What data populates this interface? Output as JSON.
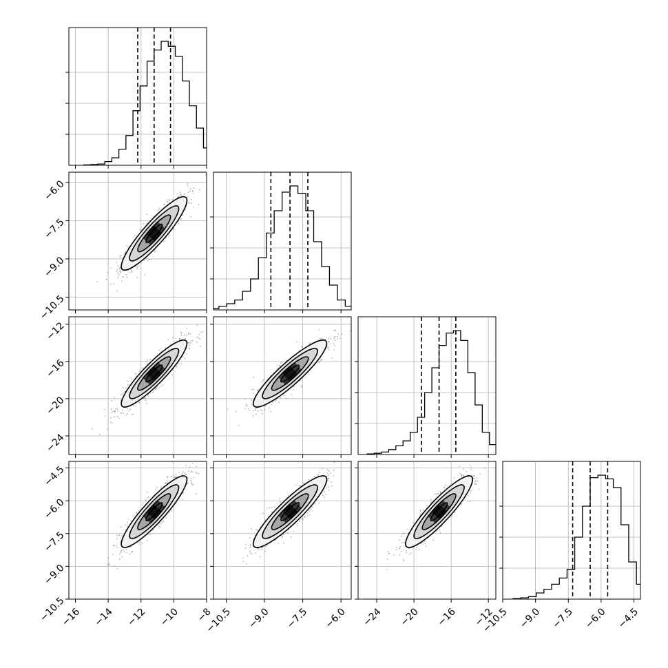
{
  "chart_data": {
    "type": "corner",
    "grid": true,
    "parameters": [
      {
        "range": [
          -16.4,
          -8.0
        ],
        "mean": -11.2,
        "sigma": 1.0,
        "quantiles": [
          -12.2,
          -11.2,
          -10.2
        ],
        "ticks": [
          -16,
          -14,
          -12,
          -10,
          -8
        ],
        "tick_labels": [
          "−16",
          "−14",
          "−12",
          "−10",
          "−8"
        ]
      },
      {
        "range": [
          -11.0,
          -5.6
        ],
        "mean": -8.0,
        "sigma": 0.72,
        "quantiles": [
          -8.75,
          -8.0,
          -7.3
        ],
        "ticks": [
          -10.5,
          -9.0,
          -7.5,
          -6.0
        ],
        "tick_labels": [
          "−10.5",
          "−9.0",
          "−7.5",
          "−6.0"
        ]
      },
      {
        "range": [
          -26.0,
          -11.2
        ],
        "mean": -17.3,
        "sigma": 1.8,
        "quantiles": [
          -19.2,
          -17.3,
          -15.5
        ],
        "ticks": [
          -24,
          -20,
          -16,
          -12
        ],
        "tick_labels": [
          "−24",
          "−20",
          "−16",
          "−12"
        ]
      },
      {
        "range": [
          -10.5,
          -4.2
        ],
        "mean": -6.5,
        "sigma": 0.82,
        "quantiles": [
          -7.3,
          -6.5,
          -5.7
        ],
        "ticks": [
          -10.5,
          -9.0,
          -7.5,
          -6.0,
          -4.5
        ],
        "tick_labels": [
          "−10.5",
          "−9.0",
          "−7.5",
          "−6.0",
          "−4.5"
        ]
      }
    ],
    "correlation": 0.9,
    "histograms": [
      [
        0.003,
        0.006,
        0.01,
        0.03,
        0.06,
        0.13,
        0.24,
        0.44,
        0.64,
        0.84,
        0.93,
        1.0,
        0.96,
        0.88,
        0.68,
        0.48,
        0.3,
        0.14,
        0.05,
        0.02
      ],
      [
        0.01,
        0.03,
        0.05,
        0.08,
        0.15,
        0.25,
        0.42,
        0.62,
        0.8,
        0.95,
        1.0,
        0.94,
        0.8,
        0.55,
        0.35,
        0.2,
        0.08,
        0.03,
        0.01,
        0.005
      ],
      [
        0.005,
        0.01,
        0.02,
        0.04,
        0.07,
        0.11,
        0.18,
        0.3,
        0.5,
        0.7,
        0.88,
        0.98,
        1.0,
        0.92,
        0.66,
        0.4,
        0.18,
        0.08,
        0.03,
        0.01
      ],
      [
        0.005,
        0.01,
        0.02,
        0.05,
        0.08,
        0.12,
        0.17,
        0.24,
        0.5,
        0.75,
        0.98,
        1.0,
        0.97,
        0.9,
        0.6,
        0.3,
        0.12,
        0.06,
        0.03,
        0.01
      ]
    ],
    "histogram_ticks": [
      0.25,
      0.5,
      0.75
    ],
    "contour_levels_sigma": [
      0.5,
      1.0,
      1.5,
      2.0
    ]
  }
}
